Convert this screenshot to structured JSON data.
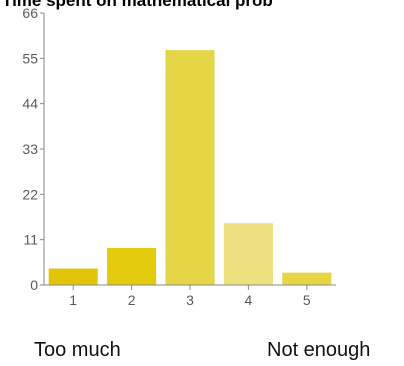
{
  "chart_data": {
    "type": "bar",
    "title": "Time spent on mathematical prob",
    "categories": [
      "1",
      "2",
      "3",
      "4",
      "5"
    ],
    "values": [
      4,
      9,
      57,
      15,
      3
    ],
    "ylim": [
      0,
      66
    ],
    "yticks": [
      "0",
      "11",
      "22",
      "33",
      "44",
      "55",
      "66"
    ],
    "left_label": "Too much",
    "right_label": "Not enough",
    "grid": false,
    "colors": [
      "#e2c50a",
      "#e2ca0d",
      "#e5d647",
      "#ede17f",
      "#e6d644"
    ]
  }
}
